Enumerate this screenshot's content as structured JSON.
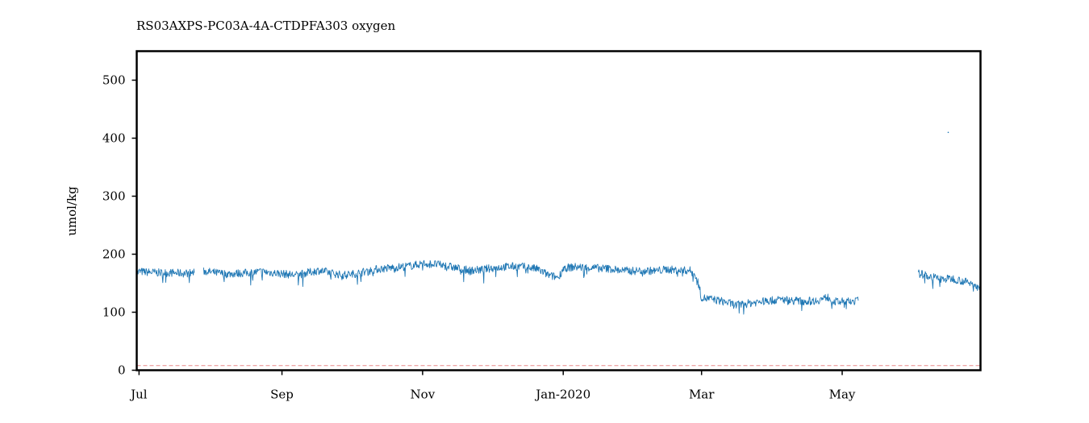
{
  "chart_data": {
    "type": "line",
    "title": "RS03AXPS-PC03A-4A-CTDPFA303 oxygen",
    "xlabel": "",
    "ylabel": "umol/kg",
    "x_range": [
      "2019-06-30",
      "2020-06-30"
    ],
    "ylim": [
      0,
      550
    ],
    "yticks": [
      0,
      100,
      200,
      300,
      400,
      500
    ],
    "xticks": [
      {
        "date": "2019-07-01",
        "label": "Jul"
      },
      {
        "date": "2019-09-01",
        "label": "Sep"
      },
      {
        "date": "2019-11-01",
        "label": "Nov"
      },
      {
        "date": "2020-01-01",
        "label": "Jan-2020"
      },
      {
        "date": "2020-03-01",
        "label": "Mar"
      },
      {
        "date": "2020-05-01",
        "label": "May"
      }
    ],
    "grid": false,
    "legend": "none",
    "series": [
      {
        "color": "#1f77b4",
        "segments": [
          [
            [
              "2019-06-30",
              166
            ],
            [
              "2019-07-01",
              170
            ],
            [
              "2019-07-05",
              169
            ],
            [
              "2019-07-10",
              168
            ],
            [
              "2019-07-15",
              168
            ],
            [
              "2019-07-20",
              167
            ],
            [
              "2019-07-25",
              168
            ]
          ],
          [
            [
              "2019-07-29",
              171
            ],
            [
              "2019-08-03",
              168
            ],
            [
              "2019-08-08",
              166
            ],
            [
              "2019-08-13",
              167
            ],
            [
              "2019-08-18",
              168
            ],
            [
              "2019-08-23",
              170
            ],
            [
              "2019-08-28",
              168
            ],
            [
              "2019-09-02",
              166
            ],
            [
              "2019-09-07",
              164
            ],
            [
              "2019-09-12",
              168
            ],
            [
              "2019-09-17",
              172
            ],
            [
              "2019-09-22",
              168
            ],
            [
              "2019-09-27",
              164
            ],
            [
              "2019-10-02",
              166
            ],
            [
              "2019-10-07",
              170
            ],
            [
              "2019-10-12",
              174
            ],
            [
              "2019-10-17",
              176
            ],
            [
              "2019-10-22",
              178
            ],
            [
              "2019-10-27",
              180
            ],
            [
              "2019-11-01",
              184
            ],
            [
              "2019-11-06",
              183
            ],
            [
              "2019-11-11",
              180
            ],
            [
              "2019-11-16",
              176
            ],
            [
              "2019-11-21",
              172
            ],
            [
              "2019-11-26",
              173
            ],
            [
              "2019-12-01",
              176
            ],
            [
              "2019-12-06",
              178
            ],
            [
              "2019-12-11",
              179
            ],
            [
              "2019-12-16",
              178
            ],
            [
              "2019-12-21",
              174
            ],
            [
              "2019-12-26",
              163
            ],
            [
              "2019-12-30",
              160
            ],
            [
              "2020-01-01",
              176
            ],
            [
              "2020-01-06",
              178
            ],
            [
              "2020-01-11",
              177
            ],
            [
              "2020-01-16",
              176
            ],
            [
              "2020-01-21",
              175
            ],
            [
              "2020-01-26",
              172
            ],
            [
              "2020-01-31",
              171
            ],
            [
              "2020-02-05",
              172
            ],
            [
              "2020-02-10",
              171
            ],
            [
              "2020-02-15",
              174
            ],
            [
              "2020-02-20",
              172
            ],
            [
              "2020-02-25",
              172
            ],
            [
              "2020-02-28",
              160
            ],
            [
              "2020-03-01",
              125
            ],
            [
              "2020-03-06",
              122
            ],
            [
              "2020-03-11",
              118
            ],
            [
              "2020-03-16",
              112
            ],
            [
              "2020-03-21",
              115
            ],
            [
              "2020-03-26",
              118
            ],
            [
              "2020-03-31",
              120
            ],
            [
              "2020-04-05",
              122
            ],
            [
              "2020-04-10",
              120
            ],
            [
              "2020-04-15",
              119
            ],
            [
              "2020-04-20",
              120
            ],
            [
              "2020-04-25",
              126
            ],
            [
              "2020-04-28",
              118
            ],
            [
              "2020-05-03",
              118
            ],
            [
              "2020-05-08",
              120
            ]
          ],
          [
            [
              "2020-06-03",
              167
            ],
            [
              "2020-06-08",
              162
            ],
            [
              "2020-06-13",
              157
            ],
            [
              "2020-06-18",
              158
            ],
            [
              "2020-06-23",
              153
            ],
            [
              "2020-06-28",
              147
            ],
            [
              "2020-06-30",
              145
            ]
          ]
        ]
      }
    ],
    "reference_line": {
      "value": 8,
      "color": "#d62728",
      "style": "dashed"
    },
    "outlier_point": {
      "date": "2020-06-16",
      "value": 410
    }
  }
}
